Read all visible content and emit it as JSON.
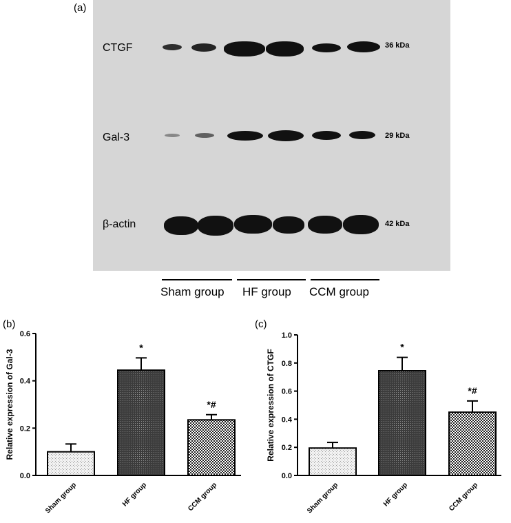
{
  "panels": {
    "a": "(a)",
    "b": "(b)",
    "c": "(c)"
  },
  "blot": {
    "proteins": [
      {
        "name": "CTGF",
        "kda": "36 kDa"
      },
      {
        "name": "Gal-3",
        "kda": "29 kDa"
      },
      {
        "name": "β-actin",
        "kda": "42 kDa"
      }
    ],
    "groups": [
      "Sham group",
      "HF group",
      "CCM group"
    ]
  },
  "colors": {
    "blot_background": "#d6d6d6",
    "band": "#111111"
  },
  "chart_data": [
    {
      "type": "bar",
      "categories": [
        "Sham group",
        "HF group",
        "CCM group"
      ],
      "values": [
        0.1,
        0.445,
        0.235
      ],
      "errors": [
        0.033,
        0.052,
        0.022
      ],
      "annotations": [
        "",
        "*",
        "*#"
      ],
      "ylabel": "Relative expression of Gal-3",
      "ylim": [
        0,
        0.6
      ],
      "yticks": [
        "0.0",
        "0.2",
        "0.4",
        "0.6"
      ],
      "patterns": [
        "light-dots",
        "dark-dense",
        "checker"
      ]
    },
    {
      "type": "bar",
      "categories": [
        "Sham group",
        "HF group",
        "CCM group"
      ],
      "values": [
        0.195,
        0.745,
        0.45
      ],
      "errors": [
        0.04,
        0.095,
        0.08
      ],
      "annotations": [
        "",
        "*",
        "*#"
      ],
      "ylabel": "Relative expression of CTGF",
      "ylim": [
        0,
        1.0
      ],
      "yticks": [
        "0.0",
        "0.2",
        "0.4",
        "0.6",
        "0.8",
        "1.0"
      ],
      "patterns": [
        "light-dots",
        "dark-dense",
        "checker"
      ]
    }
  ]
}
